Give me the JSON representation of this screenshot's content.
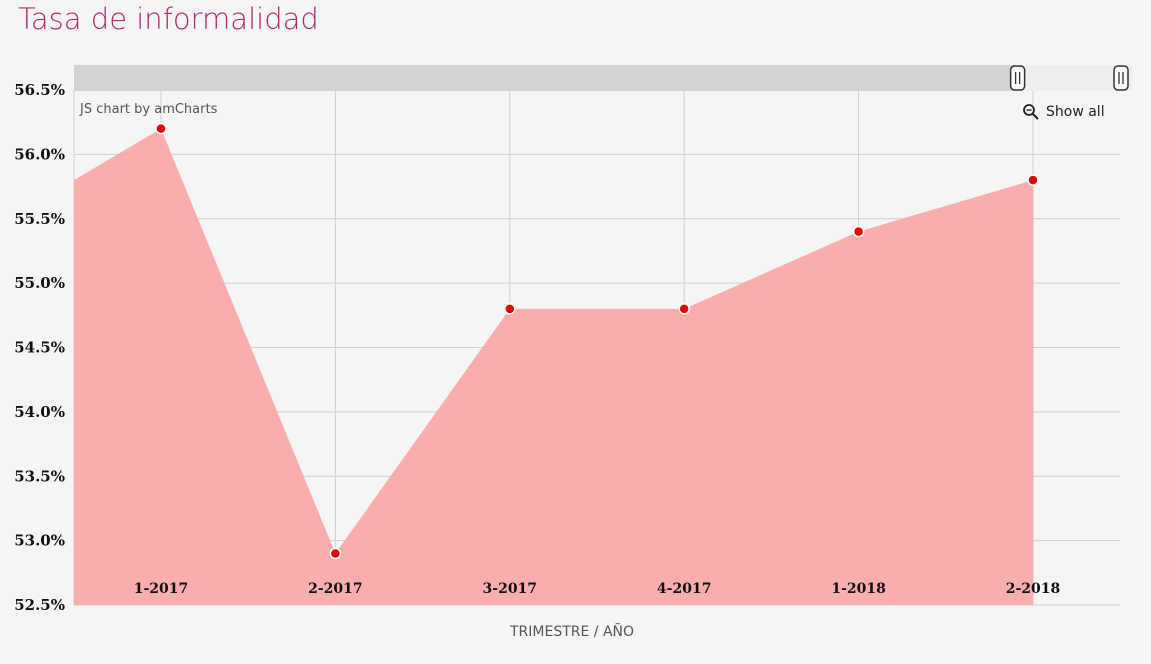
{
  "title": "Tasa de informalidad",
  "credit": "JS chart by amCharts",
  "show_all_label": "Show all",
  "colors": {
    "title": "#b0286c",
    "area_fill": "#f9a9a9",
    "point": "#e00000",
    "grid": "#cfcfcf",
    "scrollbar_bg": "#d3d3d3",
    "scrollbar_selected": "#eeeeee"
  },
  "scrollbar": {
    "selected_start": 0.89,
    "selected_end": 1.0
  },
  "chart_data": {
    "type": "area",
    "title": "Tasa de informalidad",
    "xlabel": "TRIMESTRE / AÑO",
    "ylabel": "",
    "categories": [
      "1-2017",
      "2-2017",
      "3-2017",
      "4-2017",
      "1-2018",
      "2-2018"
    ],
    "values": [
      56.2,
      52.9,
      54.8,
      54.8,
      55.4,
      55.8
    ],
    "left_edge_value": 55.8,
    "ylim": [
      52.5,
      56.5
    ],
    "yticks": [
      "52.5%",
      "53.0%",
      "53.5%",
      "54.0%",
      "54.5%",
      "55.0%",
      "55.5%",
      "56.0%",
      "56.5%"
    ],
    "ytick_values": [
      52.5,
      53.0,
      53.5,
      54.0,
      54.5,
      55.0,
      55.5,
      56.0,
      56.5
    ],
    "grid": true,
    "markers": true
  }
}
